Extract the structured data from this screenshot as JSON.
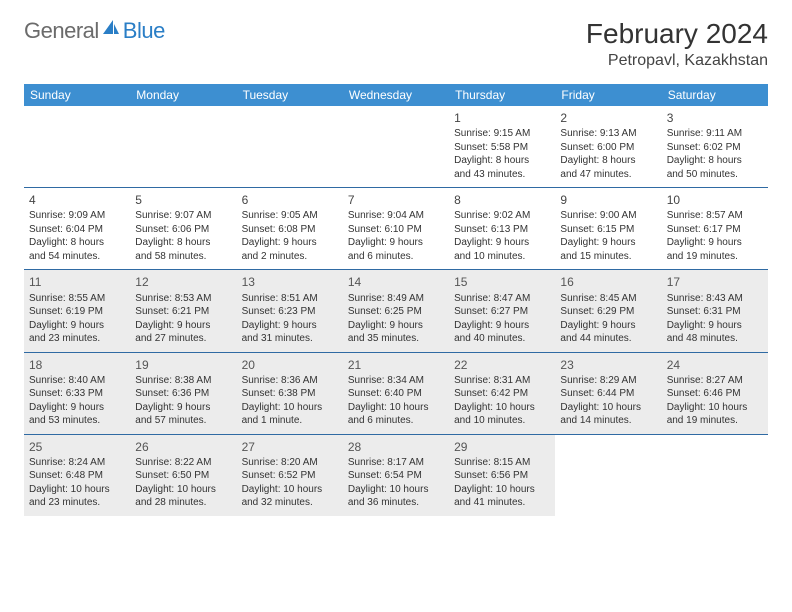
{
  "brand": {
    "general": "General",
    "blue": "Blue"
  },
  "title": "February 2024",
  "location": "Petropavl, Kazakhstan",
  "colors": {
    "header_bg": "#3d8fd1",
    "header_text": "#ffffff",
    "week_rule": "#2f6aa3",
    "shaded_bg": "#ececec",
    "text": "#333333",
    "logo_gray": "#6b6b6b",
    "logo_blue": "#2a7ec6"
  },
  "weekdays": [
    "Sunday",
    "Monday",
    "Tuesday",
    "Wednesday",
    "Thursday",
    "Friday",
    "Saturday"
  ],
  "weeks": [
    [
      {
        "blank": true
      },
      {
        "blank": true
      },
      {
        "blank": true
      },
      {
        "blank": true
      },
      {
        "day": "1",
        "sunrise": "Sunrise: 9:15 AM",
        "sunset": "Sunset: 5:58 PM",
        "dl1": "Daylight: 8 hours",
        "dl2": "and 43 minutes."
      },
      {
        "day": "2",
        "sunrise": "Sunrise: 9:13 AM",
        "sunset": "Sunset: 6:00 PM",
        "dl1": "Daylight: 8 hours",
        "dl2": "and 47 minutes."
      },
      {
        "day": "3",
        "sunrise": "Sunrise: 9:11 AM",
        "sunset": "Sunset: 6:02 PM",
        "dl1": "Daylight: 8 hours",
        "dl2": "and 50 minutes."
      }
    ],
    [
      {
        "day": "4",
        "sunrise": "Sunrise: 9:09 AM",
        "sunset": "Sunset: 6:04 PM",
        "dl1": "Daylight: 8 hours",
        "dl2": "and 54 minutes."
      },
      {
        "day": "5",
        "sunrise": "Sunrise: 9:07 AM",
        "sunset": "Sunset: 6:06 PM",
        "dl1": "Daylight: 8 hours",
        "dl2": "and 58 minutes."
      },
      {
        "day": "6",
        "sunrise": "Sunrise: 9:05 AM",
        "sunset": "Sunset: 6:08 PM",
        "dl1": "Daylight: 9 hours",
        "dl2": "and 2 minutes."
      },
      {
        "day": "7",
        "sunrise": "Sunrise: 9:04 AM",
        "sunset": "Sunset: 6:10 PM",
        "dl1": "Daylight: 9 hours",
        "dl2": "and 6 minutes."
      },
      {
        "day": "8",
        "sunrise": "Sunrise: 9:02 AM",
        "sunset": "Sunset: 6:13 PM",
        "dl1": "Daylight: 9 hours",
        "dl2": "and 10 minutes."
      },
      {
        "day": "9",
        "sunrise": "Sunrise: 9:00 AM",
        "sunset": "Sunset: 6:15 PM",
        "dl1": "Daylight: 9 hours",
        "dl2": "and 15 minutes."
      },
      {
        "day": "10",
        "sunrise": "Sunrise: 8:57 AM",
        "sunset": "Sunset: 6:17 PM",
        "dl1": "Daylight: 9 hours",
        "dl2": "and 19 minutes."
      }
    ],
    [
      {
        "day": "11",
        "shaded": true,
        "sunrise": "Sunrise: 8:55 AM",
        "sunset": "Sunset: 6:19 PM",
        "dl1": "Daylight: 9 hours",
        "dl2": "and 23 minutes."
      },
      {
        "day": "12",
        "shaded": true,
        "sunrise": "Sunrise: 8:53 AM",
        "sunset": "Sunset: 6:21 PM",
        "dl1": "Daylight: 9 hours",
        "dl2": "and 27 minutes."
      },
      {
        "day": "13",
        "shaded": true,
        "sunrise": "Sunrise: 8:51 AM",
        "sunset": "Sunset: 6:23 PM",
        "dl1": "Daylight: 9 hours",
        "dl2": "and 31 minutes."
      },
      {
        "day": "14",
        "shaded": true,
        "sunrise": "Sunrise: 8:49 AM",
        "sunset": "Sunset: 6:25 PM",
        "dl1": "Daylight: 9 hours",
        "dl2": "and 35 minutes."
      },
      {
        "day": "15",
        "shaded": true,
        "sunrise": "Sunrise: 8:47 AM",
        "sunset": "Sunset: 6:27 PM",
        "dl1": "Daylight: 9 hours",
        "dl2": "and 40 minutes."
      },
      {
        "day": "16",
        "shaded": true,
        "sunrise": "Sunrise: 8:45 AM",
        "sunset": "Sunset: 6:29 PM",
        "dl1": "Daylight: 9 hours",
        "dl2": "and 44 minutes."
      },
      {
        "day": "17",
        "shaded": true,
        "sunrise": "Sunrise: 8:43 AM",
        "sunset": "Sunset: 6:31 PM",
        "dl1": "Daylight: 9 hours",
        "dl2": "and 48 minutes."
      }
    ],
    [
      {
        "day": "18",
        "shaded": true,
        "sunrise": "Sunrise: 8:40 AM",
        "sunset": "Sunset: 6:33 PM",
        "dl1": "Daylight: 9 hours",
        "dl2": "and 53 minutes."
      },
      {
        "day": "19",
        "shaded": true,
        "sunrise": "Sunrise: 8:38 AM",
        "sunset": "Sunset: 6:36 PM",
        "dl1": "Daylight: 9 hours",
        "dl2": "and 57 minutes."
      },
      {
        "day": "20",
        "shaded": true,
        "sunrise": "Sunrise: 8:36 AM",
        "sunset": "Sunset: 6:38 PM",
        "dl1": "Daylight: 10 hours",
        "dl2": "and 1 minute."
      },
      {
        "day": "21",
        "shaded": true,
        "sunrise": "Sunrise: 8:34 AM",
        "sunset": "Sunset: 6:40 PM",
        "dl1": "Daylight: 10 hours",
        "dl2": "and 6 minutes."
      },
      {
        "day": "22",
        "shaded": true,
        "sunrise": "Sunrise: 8:31 AM",
        "sunset": "Sunset: 6:42 PM",
        "dl1": "Daylight: 10 hours",
        "dl2": "and 10 minutes."
      },
      {
        "day": "23",
        "shaded": true,
        "sunrise": "Sunrise: 8:29 AM",
        "sunset": "Sunset: 6:44 PM",
        "dl1": "Daylight: 10 hours",
        "dl2": "and 14 minutes."
      },
      {
        "day": "24",
        "shaded": true,
        "sunrise": "Sunrise: 8:27 AM",
        "sunset": "Sunset: 6:46 PM",
        "dl1": "Daylight: 10 hours",
        "dl2": "and 19 minutes."
      }
    ],
    [
      {
        "day": "25",
        "shaded": true,
        "sunrise": "Sunrise: 8:24 AM",
        "sunset": "Sunset: 6:48 PM",
        "dl1": "Daylight: 10 hours",
        "dl2": "and 23 minutes."
      },
      {
        "day": "26",
        "shaded": true,
        "sunrise": "Sunrise: 8:22 AM",
        "sunset": "Sunset: 6:50 PM",
        "dl1": "Daylight: 10 hours",
        "dl2": "and 28 minutes."
      },
      {
        "day": "27",
        "shaded": true,
        "sunrise": "Sunrise: 8:20 AM",
        "sunset": "Sunset: 6:52 PM",
        "dl1": "Daylight: 10 hours",
        "dl2": "and 32 minutes."
      },
      {
        "day": "28",
        "shaded": true,
        "sunrise": "Sunrise: 8:17 AM",
        "sunset": "Sunset: 6:54 PM",
        "dl1": "Daylight: 10 hours",
        "dl2": "and 36 minutes."
      },
      {
        "day": "29",
        "shaded": true,
        "sunrise": "Sunrise: 8:15 AM",
        "sunset": "Sunset: 6:56 PM",
        "dl1": "Daylight: 10 hours",
        "dl2": "and 41 minutes."
      },
      {
        "blank": true
      },
      {
        "blank": true
      }
    ]
  ]
}
